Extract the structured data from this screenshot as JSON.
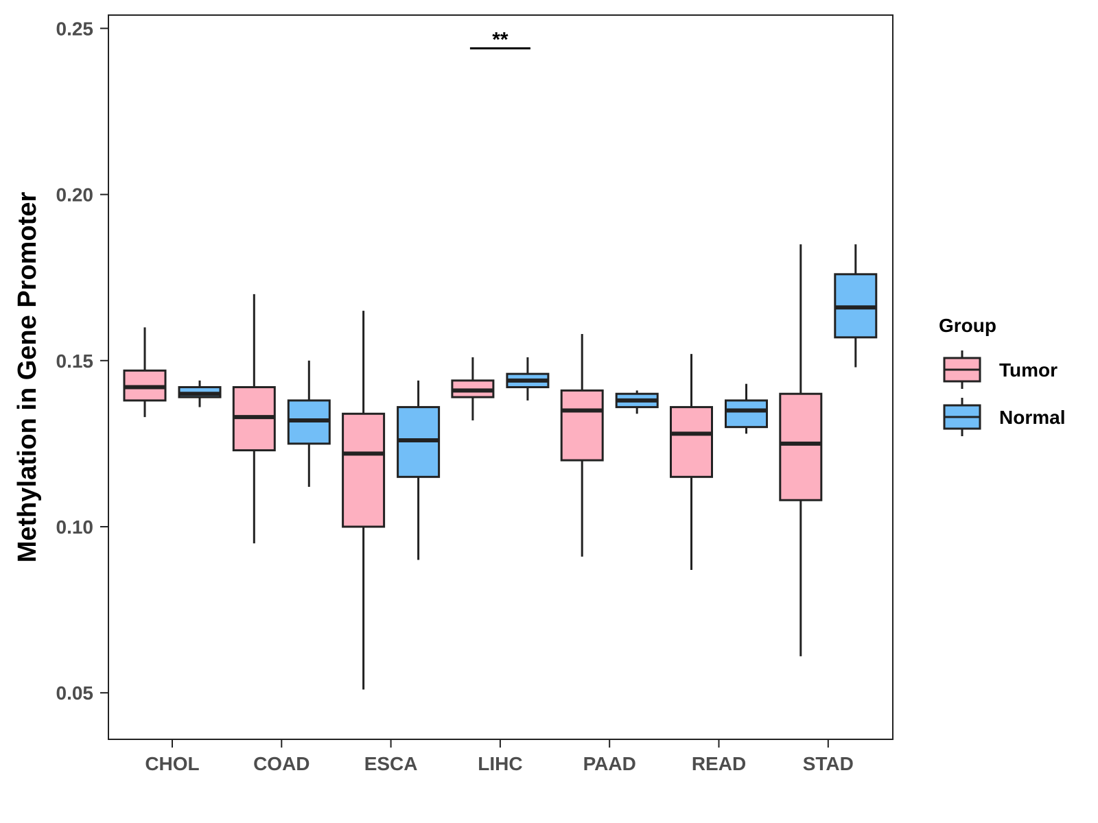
{
  "chart_data": {
    "type": "boxplot",
    "title": "",
    "xlabel": "",
    "ylabel": "Methylation in Gene Promoter",
    "ylim": [
      0.036,
      0.254
    ],
    "yticks": [
      0.05,
      0.1,
      0.15,
      0.2,
      0.25
    ],
    "ytick_labels": [
      "0.05",
      "0.10",
      "0.15",
      "0.20",
      "0.25"
    ],
    "categories": [
      "CHOL",
      "COAD",
      "ESCA",
      "LIHC",
      "PAAD",
      "READ",
      "STAD"
    ],
    "legend": {
      "title": "Group",
      "position": "right",
      "entries": [
        {
          "name": "Tumor",
          "color": "#FDB0C0"
        },
        {
          "name": "Normal",
          "color": "#72BEF7"
        }
      ]
    },
    "series": [
      {
        "name": "Tumor",
        "color": "#FDB0C0",
        "boxes": [
          {
            "whisker_low": 0.133,
            "q1": 0.138,
            "median": 0.142,
            "q3": 0.147,
            "whisker_high": 0.16
          },
          {
            "whisker_low": 0.095,
            "q1": 0.123,
            "median": 0.133,
            "q3": 0.142,
            "whisker_high": 0.17
          },
          {
            "whisker_low": 0.051,
            "q1": 0.1,
            "median": 0.122,
            "q3": 0.134,
            "whisker_high": 0.165
          },
          {
            "whisker_low": 0.132,
            "q1": 0.139,
            "median": 0.141,
            "q3": 0.144,
            "whisker_high": 0.151
          },
          {
            "whisker_low": 0.091,
            "q1": 0.12,
            "median": 0.135,
            "q3": 0.141,
            "whisker_high": 0.158
          },
          {
            "whisker_low": 0.087,
            "q1": 0.115,
            "median": 0.128,
            "q3": 0.136,
            "whisker_high": 0.152
          },
          {
            "whisker_low": 0.061,
            "q1": 0.108,
            "median": 0.125,
            "q3": 0.14,
            "whisker_high": 0.185
          }
        ]
      },
      {
        "name": "Normal",
        "color": "#72BEF7",
        "boxes": [
          {
            "whisker_low": 0.136,
            "q1": 0.139,
            "median": 0.14,
            "q3": 0.142,
            "whisker_high": 0.144
          },
          {
            "whisker_low": 0.112,
            "q1": 0.125,
            "median": 0.132,
            "q3": 0.138,
            "whisker_high": 0.15
          },
          {
            "whisker_low": 0.09,
            "q1": 0.115,
            "median": 0.126,
            "q3": 0.136,
            "whisker_high": 0.144
          },
          {
            "whisker_low": 0.138,
            "q1": 0.142,
            "median": 0.144,
            "q3": 0.146,
            "whisker_high": 0.151
          },
          {
            "whisker_low": 0.134,
            "q1": 0.136,
            "median": 0.138,
            "q3": 0.14,
            "whisker_high": 0.141
          },
          {
            "whisker_low": 0.128,
            "q1": 0.13,
            "median": 0.135,
            "q3": 0.138,
            "whisker_high": 0.143
          },
          {
            "whisker_low": 0.148,
            "q1": 0.157,
            "median": 0.166,
            "q3": 0.176,
            "whisker_high": 0.185
          }
        ]
      }
    ],
    "annotations": [
      {
        "category": "LIHC",
        "text": "**",
        "y": 0.244
      }
    ]
  },
  "colors": {
    "tumor": "#FDB0C0",
    "normal": "#72BEF7",
    "outline": "#222222",
    "axis_text": "#4d4d4d"
  }
}
